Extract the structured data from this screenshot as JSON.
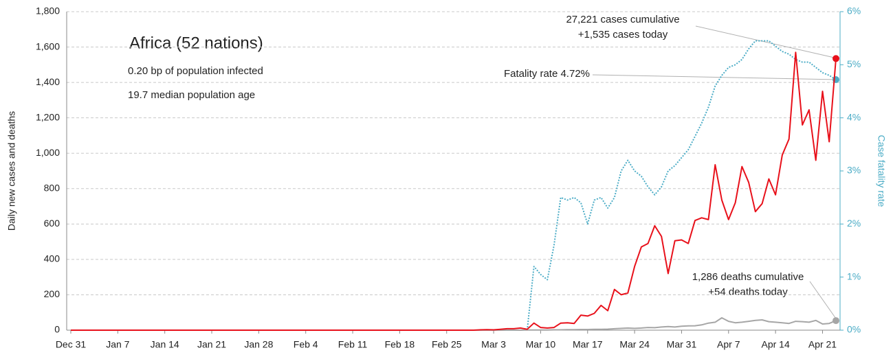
{
  "chart_data": {
    "type": "line",
    "title": "Africa (52 nations)",
    "subtitle": [
      "0.20 bp of population infected",
      "19.7 median population age"
    ],
    "ylabel": "Daily new cases and deaths",
    "y2label": "Case fatality rate",
    "annotations": [
      "27,221 cases cumulative",
      "+1,535 cases today",
      "Fatality rate 4.72%",
      "1,286 deaths cumulative",
      "+54 deaths today"
    ],
    "grid": true,
    "ylim": [
      0,
      1800
    ],
    "yticks": [
      0,
      200,
      400,
      600,
      800,
      {
        "value": 1000,
        "label": "1,000"
      },
      {
        "value": 1200,
        "label": "1,200"
      },
      {
        "value": 1400,
        "label": "1,400"
      },
      {
        "value": 1600,
        "label": "1,600"
      },
      {
        "value": 1800,
        "label": "1,800"
      }
    ],
    "y2lim": [
      0,
      6
    ],
    "y2ticks": [
      {
        "value": 0,
        "label": "0%"
      },
      {
        "value": 1,
        "label": "1%"
      },
      {
        "value": 2,
        "label": "2%"
      },
      {
        "value": 3,
        "label": "3%"
      },
      {
        "value": 4,
        "label": "4%"
      },
      {
        "value": 5,
        "label": "5%"
      },
      {
        "value": 6,
        "label": "6%"
      }
    ],
    "categories": [
      "Dec 31",
      null,
      null,
      null,
      null,
      null,
      null,
      "Jan 7",
      null,
      null,
      null,
      null,
      null,
      null,
      "Jan 14",
      null,
      null,
      null,
      null,
      null,
      null,
      "Jan 21",
      null,
      null,
      null,
      null,
      null,
      null,
      "Jan 28",
      null,
      null,
      null,
      null,
      null,
      null,
      "Feb 4",
      null,
      null,
      null,
      null,
      null,
      null,
      "Feb 11",
      null,
      null,
      null,
      null,
      null,
      null,
      "Feb 18",
      null,
      null,
      null,
      null,
      null,
      null,
      "Feb 25",
      null,
      null,
      null,
      null,
      null,
      null,
      "Mar 3",
      null,
      null,
      null,
      null,
      null,
      null,
      "Mar 10",
      null,
      null,
      null,
      null,
      null,
      null,
      "Mar 17",
      null,
      null,
      null,
      null,
      null,
      null,
      "Mar 24",
      null,
      null,
      null,
      null,
      null,
      null,
      "Mar 31",
      null,
      null,
      null,
      null,
      null,
      null,
      "Apr 7",
      null,
      null,
      null,
      null,
      null,
      null,
      "Apr 14",
      null,
      null,
      null,
      null,
      null,
      null,
      "Apr 21",
      null,
      null
    ],
    "series": [
      {
        "color": "#4bacc6",
        "axis": "y2",
        "style": "dotted",
        "values": [
          null,
          null,
          null,
          null,
          null,
          null,
          null,
          null,
          null,
          null,
          null,
          null,
          null,
          null,
          null,
          null,
          null,
          null,
          null,
          null,
          null,
          null,
          null,
          null,
          null,
          null,
          null,
          null,
          null,
          null,
          null,
          null,
          null,
          null,
          null,
          null,
          null,
          null,
          null,
          null,
          null,
          null,
          null,
          null,
          null,
          null,
          null,
          null,
          null,
          null,
          null,
          null,
          null,
          null,
          null,
          null,
          null,
          null,
          null,
          null,
          null,
          null,
          null,
          null,
          null,
          null,
          null,
          null,
          0,
          1.2,
          1.05,
          0.95,
          1.6,
          2.5,
          2.45,
          2.5,
          2.4,
          2.0,
          2.45,
          2.5,
          2.3,
          2.5,
          3.0,
          3.2,
          3.0,
          2.9,
          2.7,
          2.55,
          2.7,
          3.0,
          3.1,
          3.25,
          3.4,
          3.65,
          3.9,
          4.2,
          4.6,
          4.8,
          4.95,
          5.0,
          5.1,
          5.3,
          5.45,
          5.45,
          5.45,
          5.35,
          5.25,
          5.2,
          5.1,
          5.05,
          5.05,
          4.95,
          4.85,
          4.8,
          4.72
        ]
      },
      {
        "color": "#a6a6a6",
        "values": [
          0,
          0,
          0,
          0,
          0,
          0,
          0,
          0,
          0,
          0,
          0,
          0,
          0,
          0,
          0,
          0,
          0,
          0,
          0,
          0,
          0,
          0,
          0,
          0,
          0,
          0,
          0,
          0,
          0,
          0,
          0,
          0,
          0,
          0,
          0,
          0,
          0,
          0,
          0,
          0,
          0,
          0,
          0,
          0,
          0,
          0,
          0,
          0,
          0,
          0,
          0,
          0,
          0,
          0,
          0,
          0,
          0,
          0,
          0,
          0,
          0,
          0,
          0,
          0,
          0,
          0,
          0,
          0,
          1,
          1,
          1,
          1,
          2,
          2,
          3,
          3,
          4,
          4,
          5,
          5,
          6,
          8,
          10,
          12,
          10,
          12,
          15,
          14,
          18,
          20,
          18,
          22,
          24,
          25,
          30,
          40,
          45,
          70,
          50,
          42,
          45,
          50,
          55,
          58,
          48,
          45,
          42,
          38,
          50,
          48,
          45,
          55,
          35,
          38,
          54
        ]
      },
      {
        "color": "#e8101a",
        "values": [
          0,
          0,
          0,
          0,
          0,
          0,
          0,
          0,
          0,
          0,
          0,
          0,
          0,
          0,
          0,
          0,
          0,
          0,
          0,
          0,
          0,
          0,
          0,
          0,
          0,
          0,
          0,
          0,
          0,
          0,
          0,
          0,
          0,
          0,
          0,
          0,
          0,
          0,
          0,
          0,
          0,
          0,
          0,
          0,
          0,
          0,
          0,
          0,
          0,
          0,
          0,
          0,
          0,
          0,
          0,
          0,
          0,
          0,
          0,
          0,
          0,
          2,
          3,
          2,
          5,
          8,
          8,
          12,
          5,
          40,
          15,
          12,
          15,
          40,
          42,
          38,
          85,
          80,
          95,
          140,
          110,
          230,
          200,
          210,
          360,
          470,
          490,
          590,
          530,
          320,
          505,
          510,
          490,
          620,
          635,
          625,
          935,
          735,
          625,
          720,
          925,
          835,
          670,
          715,
          855,
          765,
          990,
          1080,
          1570,
          1160,
          1245,
          960,
          1350,
          1065,
          1535
        ]
      }
    ]
  }
}
